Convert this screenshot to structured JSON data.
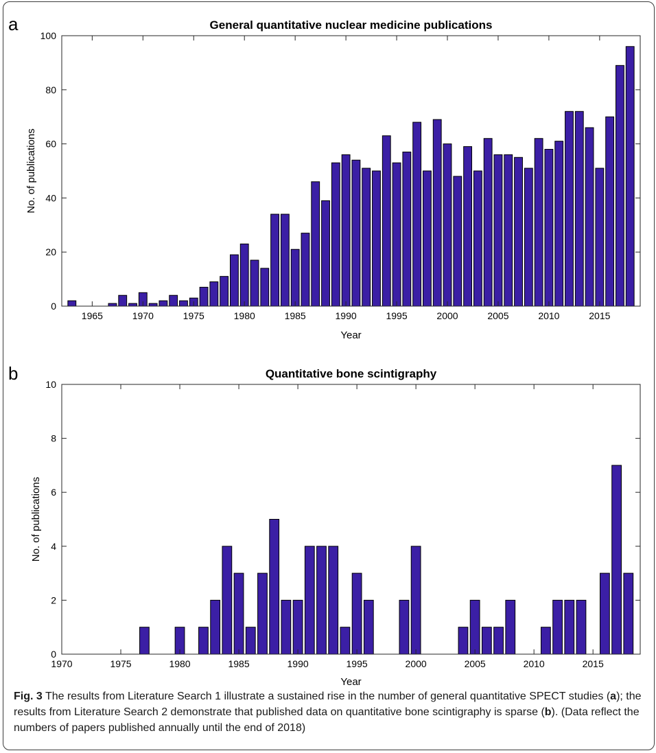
{
  "figure": {
    "caption": {
      "label": "Fig. 3",
      "parts": [
        " The results from Literature Search 1 illustrate a sustained rise in the number of general quantitative SPECT studies (",
        "a",
        "); the results from Literature Search 2 demonstrate that published data on quantitative bone scintigraphy is sparse (",
        "b",
        "). (Data reflect the numbers of papers published annually until the end of 2018)"
      ]
    }
  },
  "colors": {
    "bar_fill": "#3b1fa5",
    "bar_stroke": "#000000",
    "axis": "#262626"
  },
  "chart_data": [
    {
      "panel": "a",
      "type": "bar",
      "title": "General quantitative nuclear medicine publications",
      "xlabel": "Year",
      "ylabel": "No. of publications",
      "xlim": [
        1962,
        2019
      ],
      "ylim": [
        0,
        100
      ],
      "xticks": [
        1965,
        1970,
        1975,
        1980,
        1985,
        1990,
        1995,
        2000,
        2005,
        2010,
        2015
      ],
      "yticks": [
        0,
        20,
        40,
        60,
        80,
        100
      ],
      "grid": false,
      "x": [
        1963,
        1964,
        1965,
        1966,
        1967,
        1968,
        1969,
        1970,
        1971,
        1972,
        1973,
        1974,
        1975,
        1976,
        1977,
        1978,
        1979,
        1980,
        1981,
        1982,
        1983,
        1984,
        1985,
        1986,
        1987,
        1988,
        1989,
        1990,
        1991,
        1992,
        1993,
        1994,
        1995,
        1996,
        1997,
        1998,
        1999,
        2000,
        2001,
        2002,
        2003,
        2004,
        2005,
        2006,
        2007,
        2008,
        2009,
        2010,
        2011,
        2012,
        2013,
        2014,
        2015,
        2016,
        2017,
        2018
      ],
      "values": [
        2,
        0,
        0,
        0,
        1,
        4,
        1,
        5,
        1,
        2,
        4,
        2,
        3,
        7,
        9,
        11,
        19,
        23,
        17,
        14,
        34,
        34,
        21,
        27,
        46,
        39,
        53,
        56,
        54,
        51,
        50,
        63,
        53,
        57,
        68,
        50,
        69,
        60,
        48,
        59,
        50,
        62,
        56,
        56,
        55,
        51,
        62,
        58,
        61,
        72,
        72,
        66,
        51,
        70,
        89,
        96
      ]
    },
    {
      "panel": "b",
      "type": "bar",
      "title": "Quantitative bone scintigraphy",
      "xlabel": "Year",
      "ylabel": "No. of publications",
      "xlim": [
        1970,
        2019
      ],
      "ylim": [
        0,
        10
      ],
      "xticks": [
        1970,
        1975,
        1980,
        1985,
        1990,
        1995,
        2000,
        2005,
        2010,
        2015
      ],
      "yticks": [
        0,
        2,
        4,
        6,
        8,
        10
      ],
      "grid": false,
      "x": [
        1977,
        1980,
        1982,
        1983,
        1984,
        1985,
        1986,
        1987,
        1988,
        1989,
        1990,
        1991,
        1992,
        1993,
        1994,
        1995,
        1996,
        1999,
        2000,
        2004,
        2005,
        2006,
        2007,
        2008,
        2011,
        2012,
        2013,
        2014,
        2016,
        2017,
        2018
      ],
      "values": [
        1,
        1,
        1,
        2,
        4,
        3,
        1,
        3,
        5,
        2,
        2,
        4,
        4,
        4,
        1,
        3,
        2,
        2,
        4,
        1,
        2,
        1,
        1,
        2,
        1,
        2,
        2,
        2,
        3,
        7,
        3
      ]
    }
  ]
}
